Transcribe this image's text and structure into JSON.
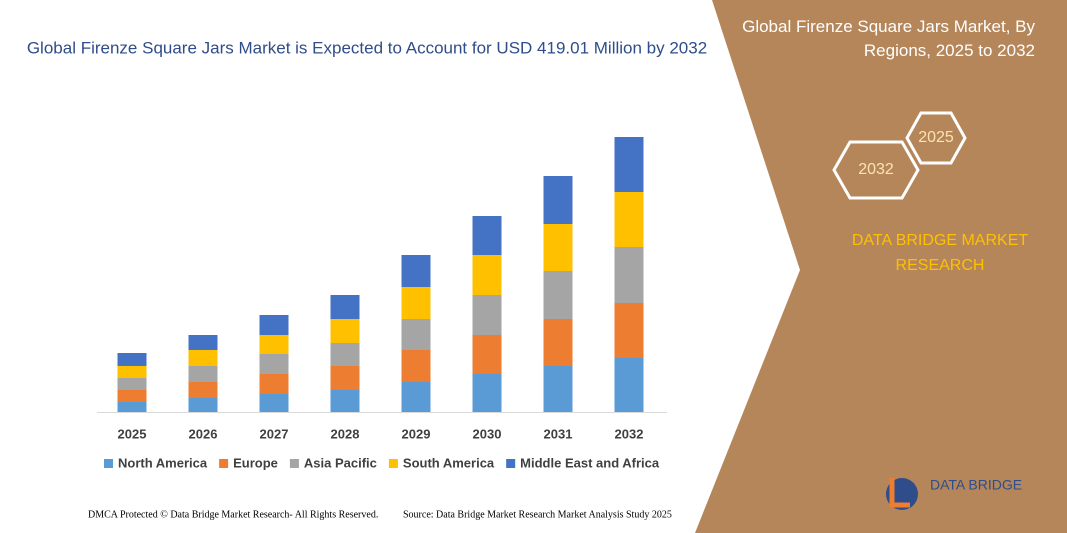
{
  "chart_data": {
    "type": "bar",
    "stacked": true,
    "title": "Global Firenze Square Jars Market is Expected to Account for USD 419.01 Million by 2032",
    "categories": [
      "2025",
      "2026",
      "2027",
      "2028",
      "2029",
      "2030",
      "2031",
      "2032"
    ],
    "series": [
      {
        "name": "North America",
        "color": "#5b9bd5",
        "values": [
          10,
          14,
          18,
          22,
          30,
          38,
          46,
          54
        ]
      },
      {
        "name": "Europe",
        "color": "#ed7d31",
        "values": [
          12,
          16,
          20,
          24,
          32,
          39,
          47,
          55
        ]
      },
      {
        "name": "Asia Pacific",
        "color": "#a5a5a5",
        "values": [
          12,
          16,
          20,
          23,
          31,
          40,
          48,
          56
        ]
      },
      {
        "name": "South America",
        "color": "#ffc000",
        "values": [
          12,
          16,
          19,
          24,
          32,
          40,
          47,
          55
        ]
      },
      {
        "name": "Middle East and Africa",
        "color": "#4472c4",
        "values": [
          13,
          15,
          20,
          24,
          32,
          39,
          48,
          55
        ]
      }
    ]
  },
  "panel": {
    "title": "Global Firenze Square Jars Market, By Regions, 2025 to 2032",
    "hex_start": "2025",
    "hex_end": "2032",
    "brand": "DATA BRIDGE MARKET RESEARCH"
  },
  "logo": "DATA BRIDGE",
  "footer": {
    "left": "DMCA Protected © Data Bridge Market Research- All Rights Reserved.",
    "right": "Source: Data Bridge Market Research  Market Analysis Study 2025"
  }
}
